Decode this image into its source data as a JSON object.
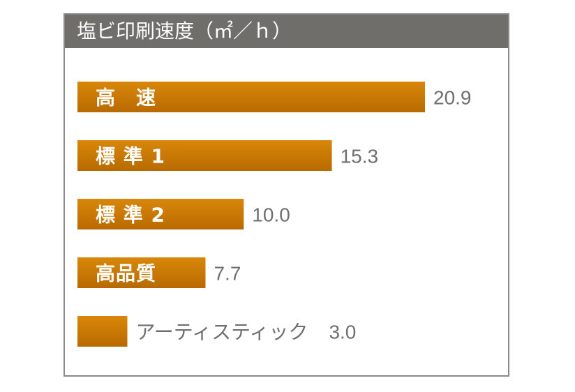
{
  "chart_data": {
    "type": "bar",
    "orientation": "horizontal",
    "title": "塩ビ印刷速度（㎡／ｈ）",
    "categories": [
      "高　速",
      "標 準 1",
      "標 準 2",
      "高品質",
      "アーティスティック"
    ],
    "values": [
      20.9,
      15.3,
      10.0,
      7.7,
      3.0
    ],
    "value_labels": [
      "20.9",
      "15.3",
      "10.0",
      "7.7",
      "3.0"
    ],
    "bar_color": "#d9870a",
    "bar_color_dark": "#b86a00",
    "xlim": [
      0,
      25
    ],
    "grid": false,
    "legend": "none"
  }
}
